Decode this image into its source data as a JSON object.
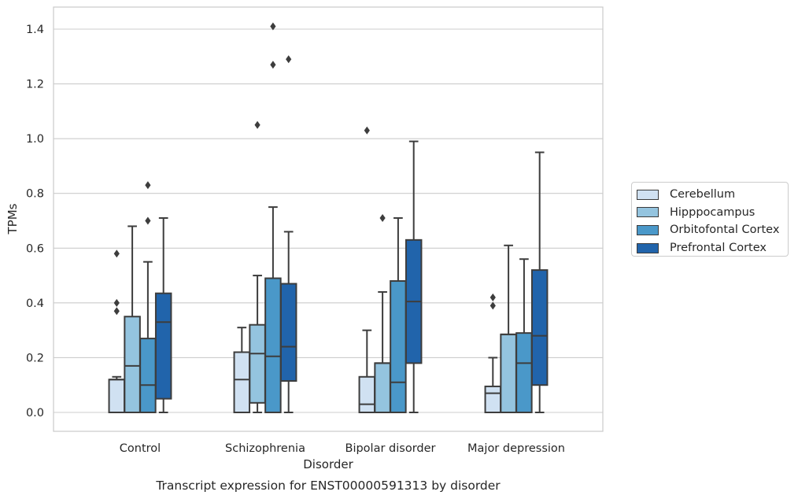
{
  "chart_data": {
    "type": "boxplot",
    "title": "Transcript expression for ENST00000591313 by disorder",
    "xlabel": "Disorder",
    "ylabel": "TPMs",
    "ylim": [
      -0.07,
      1.48
    ],
    "yticks": [
      0.0,
      0.2,
      0.4,
      0.6,
      0.8,
      1.0,
      1.2,
      1.4
    ],
    "ytick_labels": [
      "0.0",
      "0.2",
      "0.4",
      "0.6",
      "0.8",
      "1.0",
      "1.2",
      "1.4"
    ],
    "grid": "horizontal",
    "legend_position": "right",
    "categories": [
      "Control",
      "Schizophrenia",
      "Bipolar disorder",
      "Major depression"
    ],
    "series": [
      {
        "name": "Cerebellum",
        "color": "#d0e1f2",
        "boxes": [
          {
            "whislo": 0.0,
            "q1": 0.0,
            "med": 0.12,
            "q3": 0.12,
            "whishi": 0.13,
            "fliers": [
              0.37,
              0.4,
              0.58
            ]
          },
          {
            "whislo": 0.0,
            "q1": 0.0,
            "med": 0.12,
            "q3": 0.22,
            "whishi": 0.31,
            "fliers": []
          },
          {
            "whislo": 0.0,
            "q1": 0.0,
            "med": 0.03,
            "q3": 0.13,
            "whishi": 0.3,
            "fliers": [
              1.03
            ]
          },
          {
            "whislo": 0.0,
            "q1": 0.0,
            "med": 0.07,
            "q3": 0.095,
            "whishi": 0.2,
            "fliers": [
              0.39,
              0.42
            ]
          }
        ]
      },
      {
        "name": "Hipppocampus",
        "color": "#94c4df",
        "boxes": [
          {
            "whislo": 0.0,
            "q1": 0.0,
            "med": 0.17,
            "q3": 0.35,
            "whishi": 0.68,
            "fliers": []
          },
          {
            "whislo": 0.0,
            "q1": 0.035,
            "med": 0.215,
            "q3": 0.32,
            "whishi": 0.5,
            "fliers": [
              1.05
            ]
          },
          {
            "whislo": 0.0,
            "q1": 0.0,
            "med": 0.18,
            "q3": 0.18,
            "whishi": 0.44,
            "fliers": [
              0.71
            ]
          },
          {
            "whislo": 0.0,
            "q1": 0.0,
            "med": 0.285,
            "q3": 0.285,
            "whishi": 0.61,
            "fliers": []
          }
        ]
      },
      {
        "name": "Orbitofontal Cortex",
        "color": "#4a98c9",
        "boxes": [
          {
            "whislo": 0.0,
            "q1": 0.0,
            "med": 0.1,
            "q3": 0.27,
            "whishi": 0.55,
            "fliers": [
              0.7,
              0.83
            ]
          },
          {
            "whislo": 0.0,
            "q1": 0.0,
            "med": 0.205,
            "q3": 0.49,
            "whishi": 0.75,
            "fliers": [
              1.27,
              1.41
            ]
          },
          {
            "whislo": 0.0,
            "q1": 0.0,
            "med": 0.11,
            "q3": 0.48,
            "whishi": 0.71,
            "fliers": []
          },
          {
            "whislo": 0.0,
            "q1": 0.0,
            "med": 0.18,
            "q3": 0.29,
            "whishi": 0.56,
            "fliers": []
          }
        ]
      },
      {
        "name": "Prefrontal Cortex",
        "color": "#2164ab",
        "boxes": [
          {
            "whislo": 0.0,
            "q1": 0.05,
            "med": 0.33,
            "q3": 0.435,
            "whishi": 0.71,
            "fliers": []
          },
          {
            "whislo": 0.0,
            "q1": 0.115,
            "med": 0.24,
            "q3": 0.47,
            "whishi": 0.66,
            "fliers": [
              1.29
            ]
          },
          {
            "whislo": 0.0,
            "q1": 0.18,
            "med": 0.405,
            "q3": 0.63,
            "whishi": 0.99,
            "fliers": []
          },
          {
            "whislo": 0.0,
            "q1": 0.1,
            "med": 0.28,
            "q3": 0.52,
            "whishi": 0.95,
            "fliers": []
          }
        ]
      }
    ]
  }
}
